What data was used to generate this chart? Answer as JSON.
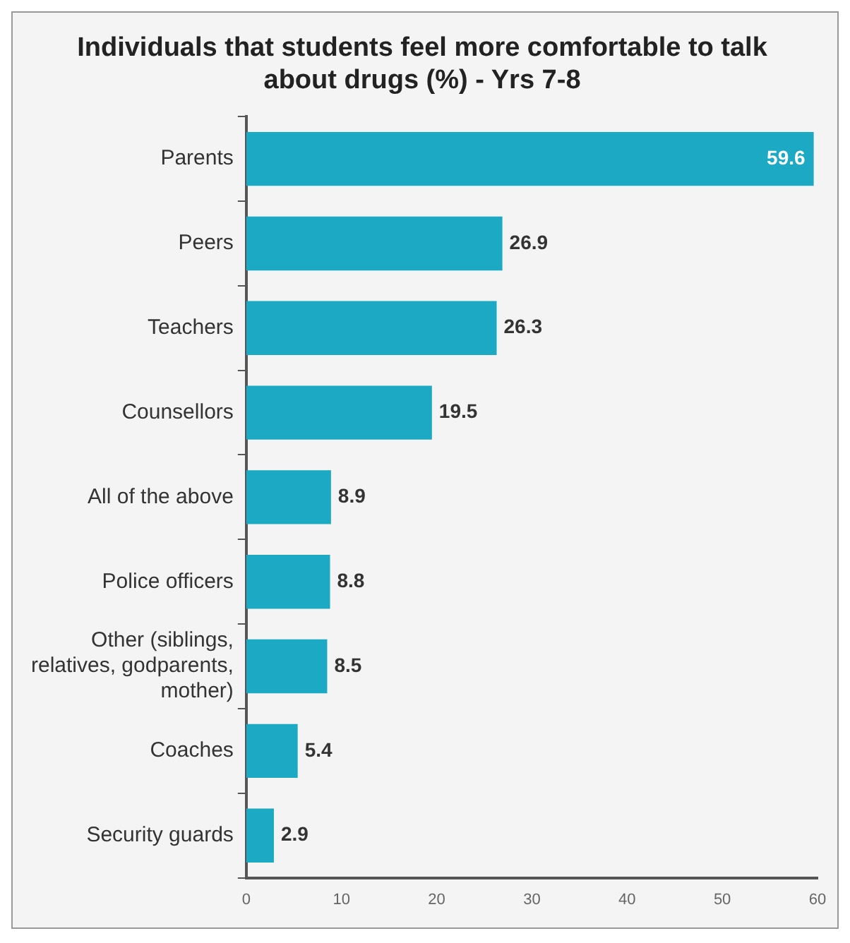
{
  "chart_data": {
    "type": "bar",
    "orientation": "horizontal",
    "title": "Individuals that students feel more comfortable to talk about drugs (%) - Yrs 7-8",
    "categories": [
      "Parents",
      "Peers",
      "Teachers",
      "Counsellors",
      "All of the above",
      "Police officers",
      "Other (siblings, relatives, godparents, mother)",
      "Coaches",
      "Security guards"
    ],
    "values": [
      59.6,
      26.9,
      26.3,
      19.5,
      8.9,
      8.8,
      8.5,
      5.4,
      2.9
    ],
    "color": "#1ba9c4",
    "xlim": [
      0,
      60
    ],
    "xticks": [
      0,
      10,
      20,
      30,
      40,
      50,
      60
    ],
    "grid": false,
    "legend": false,
    "data_labels": true
  }
}
